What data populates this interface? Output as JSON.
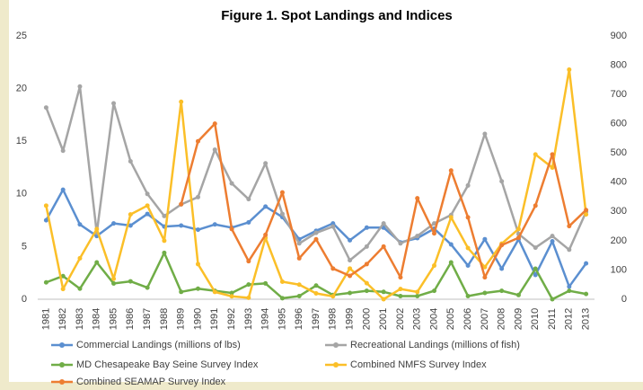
{
  "chart_data": {
    "type": "line",
    "title": "Figure 1. Spot Landings and Indices",
    "categories": [
      "1981",
      "1982",
      "1983",
      "1984",
      "1985",
      "1986",
      "1987",
      "1988",
      "1989",
      "1990",
      "1991",
      "1992",
      "1993",
      "1994",
      "1995",
      "1996",
      "1997",
      "1998",
      "1999",
      "2000",
      "2001",
      "2002",
      "2003",
      "2004",
      "2005",
      "2006",
      "2007",
      "2008",
      "2009",
      "2010",
      "2011",
      "2012",
      "2013"
    ],
    "series": [
      {
        "name": "Commercial Landings (millions of lbs)",
        "color": "#5b8fd0",
        "values": [
          7.5,
          10.4,
          7.1,
          6.0,
          7.2,
          7.0,
          8.1,
          6.9,
          7.0,
          6.6,
          7.1,
          6.8,
          7.3,
          8.8,
          7.8,
          5.7,
          6.5,
          7.2,
          5.6,
          6.8,
          6.8,
          5.4,
          5.8,
          6.7,
          5.2,
          3.2,
          5.7,
          2.9,
          5.7,
          2.3,
          5.5,
          1.2,
          3.4
        ]
      },
      {
        "name": "Recreational Landings (millions of fish)",
        "color": "#a5a5a5",
        "values": [
          18.2,
          14.1,
          20.2,
          6.3,
          18.6,
          13.1,
          10.0,
          7.9,
          9.0,
          9.7,
          14.2,
          11.0,
          9.5,
          12.9,
          8.1,
          5.3,
          6.3,
          6.9,
          3.7,
          5.0,
          7.2,
          5.3,
          6.0,
          7.2,
          8.0,
          10.8,
          15.7,
          11.2,
          6.2,
          4.9,
          6.0,
          4.7,
          8.3
        ]
      },
      {
        "name": "MD Chesapeake Bay Seine Survey Index",
        "color": "#70ad47",
        "values": [
          1.6,
          2.2,
          1.0,
          3.5,
          1.5,
          1.7,
          1.1,
          4.4,
          0.7,
          1.0,
          0.8,
          0.6,
          1.4,
          1.5,
          0.1,
          0.3,
          1.3,
          0.4,
          0.6,
          0.8,
          0.7,
          0.3,
          0.3,
          0.8,
          3.5,
          0.3,
          0.6,
          0.8,
          0.4,
          2.9,
          0.0,
          0.8,
          0.5
        ]
      },
      {
        "name": "Combined NMFS Survey Index",
        "color": "#fbbf28",
        "axis": "y2",
        "values": [
          320,
          35,
          140,
          240,
          70,
          290,
          320,
          200,
          675,
          120,
          25,
          10,
          5,
          210,
          60,
          50,
          20,
          10,
          105,
          55,
          0,
          35,
          25,
          115,
          280,
          175,
          110,
          190,
          240,
          495,
          450,
          785,
          290
        ]
      },
      {
        "name": "Combined SEAMAP Survey Index",
        "color": "#ed7d31",
        "axis": "y2",
        "values": [
          null,
          null,
          null,
          null,
          null,
          null,
          null,
          null,
          325,
          540,
          600,
          240,
          130,
          220,
          365,
          140,
          205,
          105,
          80,
          120,
          180,
          75,
          345,
          225,
          440,
          280,
          75,
          185,
          210,
          320,
          495,
          250,
          305
        ]
      }
    ],
    "ylim": [
      0,
      25
    ],
    "yticks": [
      0,
      5,
      10,
      15,
      20,
      25
    ],
    "y2lim": [
      0,
      900
    ],
    "y2ticks": [
      0,
      100,
      200,
      300,
      400,
      500,
      600,
      700,
      800,
      900
    ],
    "grid": false
  }
}
